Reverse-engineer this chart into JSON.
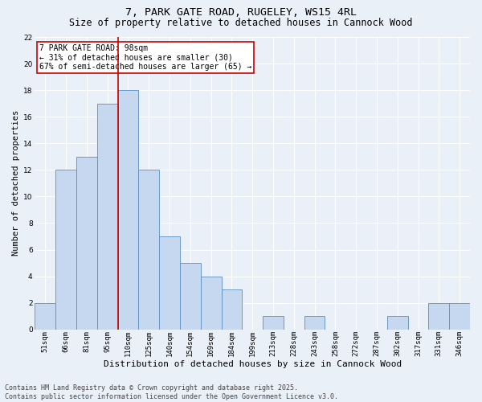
{
  "title1": "7, PARK GATE ROAD, RUGELEY, WS15 4RL",
  "title2": "Size of property relative to detached houses in Cannock Wood",
  "xlabel": "Distribution of detached houses by size in Cannock Wood",
  "ylabel": "Number of detached properties",
  "categories": [
    "51sqm",
    "66sqm",
    "81sqm",
    "95sqm",
    "110sqm",
    "125sqm",
    "140sqm",
    "154sqm",
    "169sqm",
    "184sqm",
    "199sqm",
    "213sqm",
    "228sqm",
    "243sqm",
    "258sqm",
    "272sqm",
    "287sqm",
    "302sqm",
    "317sqm",
    "331sqm",
    "346sqm"
  ],
  "values": [
    2,
    12,
    13,
    17,
    18,
    12,
    7,
    5,
    4,
    3,
    0,
    1,
    0,
    1,
    0,
    0,
    0,
    1,
    0,
    2,
    2
  ],
  "bar_color": "#c5d8f0",
  "bar_edge_color": "#5a8fc2",
  "red_line_x": 3.5,
  "annotation_title": "7 PARK GATE ROAD: 98sqm",
  "annotation_line1": "← 31% of detached houses are smaller (30)",
  "annotation_line2": "67% of semi-detached houses are larger (65) →",
  "annotation_box_color": "#ffffff",
  "annotation_box_edge": "#cc0000",
  "red_line_color": "#cc0000",
  "ylim": [
    0,
    22
  ],
  "yticks": [
    0,
    2,
    4,
    6,
    8,
    10,
    12,
    14,
    16,
    18,
    20,
    22
  ],
  "footer1": "Contains HM Land Registry data © Crown copyright and database right 2025.",
  "footer2": "Contains public sector information licensed under the Open Government Licence v3.0.",
  "bg_color": "#eaf0f8",
  "grid_color": "#ffffff",
  "title1_fontsize": 9.5,
  "title2_fontsize": 8.5,
  "xlabel_fontsize": 8,
  "ylabel_fontsize": 7.5,
  "tick_fontsize": 6.5,
  "footer_fontsize": 6,
  "annot_fontsize": 7
}
